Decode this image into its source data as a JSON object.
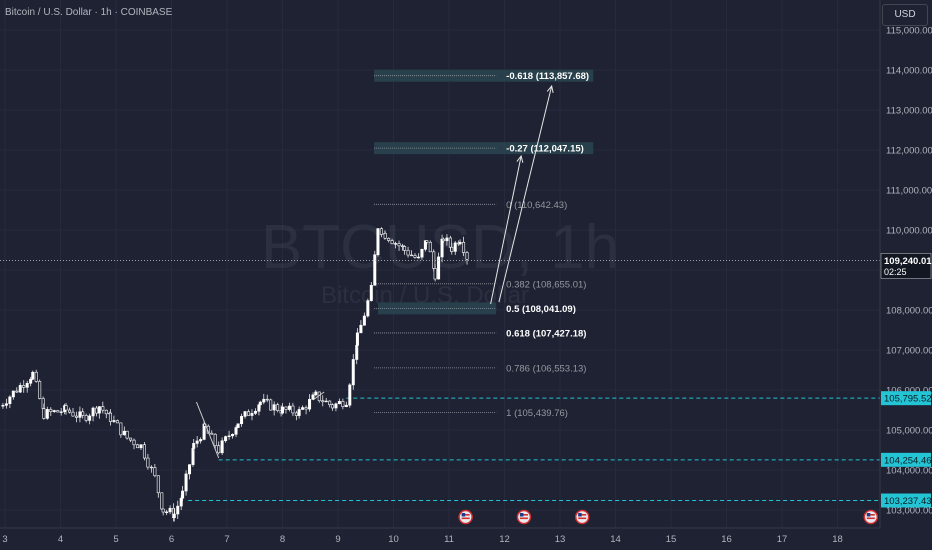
{
  "header": {
    "title": "Bitcoin / U.S. Dollar · 1h · COINBASE",
    "currency_button": "USD"
  },
  "watermark": {
    "symbol": "BTCUSD, 1h",
    "name": "Bitcoin / U.S. Dollar"
  },
  "colors": {
    "background": "#1e2233",
    "up": "#ffffff",
    "down": "#ffffff",
    "fib_band": "#2a4550",
    "dashed_level": "#23c4d4",
    "price_tag_bg": "#1e2233"
  },
  "chart_data": {
    "type": "candlestick",
    "symbol": "BTCUSD",
    "timeframe": "1h",
    "ylim": [
      102950,
      115450
    ],
    "xlim": [
      3,
      18.8
    ],
    "y_ticks": [
      103000,
      104000,
      105000,
      106000,
      107000,
      108000,
      109000,
      110000,
      111000,
      112000,
      113000,
      114000,
      115000
    ],
    "y_tick_labels": [
      "103,000.00",
      "104,000.00",
      "105,000.00",
      "106,000.00",
      "107,000.00",
      "108,000.00",
      "",
      "110,000.00",
      "111,000.00",
      "112,000.00",
      "113,000.00",
      "114,000.00",
      "115,000.00"
    ],
    "x_ticks": [
      3,
      4,
      5,
      6,
      7,
      8,
      9,
      10,
      11,
      12,
      13,
      14,
      15,
      16,
      17,
      18
    ],
    "x_tick_labels": [
      "3",
      "4",
      "5",
      "6",
      "7",
      "8",
      "9",
      "10",
      "11",
      "12",
      "13",
      "14",
      "15",
      "16",
      "17",
      "18"
    ],
    "current_price": {
      "value": 109240.01,
      "label": "109,240.01",
      "countdown": "02:25"
    },
    "fib_levels": [
      {
        "ratio": "-0.618",
        "price": 113857.68,
        "label": "-0.618 (113,857.68)",
        "highlight": true
      },
      {
        "ratio": "-0.27",
        "price": 112047.15,
        "label": "-0.27 (112,047.15)",
        "highlight": true
      },
      {
        "ratio": "0",
        "price": 110642.43,
        "label": "0 (110,642.43)",
        "highlight": false
      },
      {
        "ratio": "0.382",
        "price": 108655.01,
        "label": "0.382 (108,655.01)",
        "highlight": false
      },
      {
        "ratio": "0.5",
        "price": 108041.09,
        "label": "0.5 (108,041.09)",
        "highlight": true
      },
      {
        "ratio": "0.618",
        "price": 107427.18,
        "label": "0.618 (107,427.18)",
        "highlight": false
      },
      {
        "ratio": "0.786",
        "price": 106553.13,
        "label": "0.786 (106,553.13)",
        "highlight": false
      },
      {
        "ratio": "1",
        "price": 105439.76,
        "label": "1 (105,439.76)",
        "highlight": false
      }
    ],
    "horizontal_levels": [
      {
        "price": 105795.52,
        "label": "105,795.52",
        "x_start": 9.15
      },
      {
        "price": 104254.46,
        "label": "104,254.46",
        "x_start": 6.85
      },
      {
        "price": 103237.43,
        "label": "103,237.43",
        "x_start": 6.3
      }
    ],
    "projection_arrows": [
      {
        "x1": 11.75,
        "y1": 108150,
        "x2": 12.3,
        "y2": 111850
      },
      {
        "x1": 11.9,
        "y1": 108200,
        "x2": 12.85,
        "y2": 113600
      }
    ],
    "trendlines": [
      {
        "x1": 6.45,
        "y1": 105700,
        "x2": 6.85,
        "y2": 104300
      },
      {
        "x1": 8.55,
        "y1": 105750,
        "x2": 8.75,
        "y2": 105950
      }
    ],
    "event_markers_x": [
      11.3,
      12.35,
      13.4,
      18.6
    ],
    "close_anchors": [
      [
        2.9,
        105600
      ],
      [
        3.5,
        106400
      ],
      [
        3.7,
        105400
      ],
      [
        4.1,
        105500
      ],
      [
        4.4,
        105300
      ],
      [
        4.7,
        105600
      ],
      [
        4.9,
        105300
      ],
      [
        5.2,
        104800
      ],
      [
        5.45,
        104600
      ],
      [
        5.7,
        103800
      ],
      [
        5.85,
        103000
      ],
      [
        6.05,
        102900
      ],
      [
        6.2,
        103400
      ],
      [
        6.4,
        104600
      ],
      [
        6.6,
        105050
      ],
      [
        6.85,
        104500
      ],
      [
        7.2,
        105200
      ],
      [
        7.6,
        105700
      ],
      [
        8.0,
        105500
      ],
      [
        8.3,
        105450
      ],
      [
        8.6,
        105850
      ],
      [
        8.9,
        105600
      ],
      [
        9.15,
        105750
      ],
      [
        9.35,
        107300
      ],
      [
        9.6,
        108500
      ],
      [
        9.72,
        110100
      ],
      [
        9.85,
        109900
      ],
      [
        10.2,
        109500
      ],
      [
        10.45,
        109250
      ],
      [
        10.6,
        109750
      ],
      [
        10.75,
        108900
      ],
      [
        10.9,
        109800
      ],
      [
        11.05,
        109550
      ],
      [
        11.2,
        109800
      ],
      [
        11.35,
        109240
      ]
    ]
  }
}
